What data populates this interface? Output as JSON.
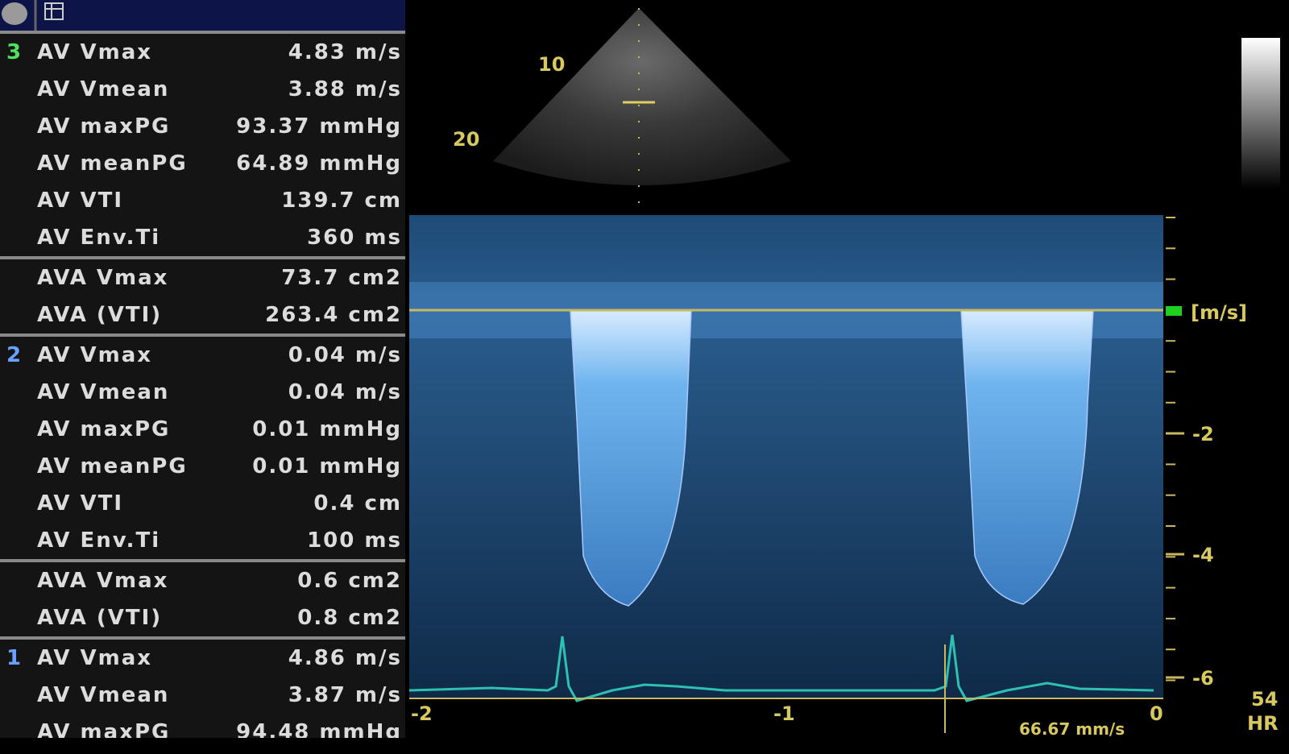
{
  "measurements": [
    {
      "index": "3",
      "rows": [
        {
          "label": "AV Vmax",
          "value": "4.83 m/s"
        },
        {
          "label": "AV Vmean",
          "value": "3.88 m/s"
        },
        {
          "label": "AV maxPG",
          "value": "93.37 mmHg"
        },
        {
          "label": "AV meanPG",
          "value": "64.89 mmHg"
        },
        {
          "label": "AV VTI",
          "value": "139.7 cm"
        },
        {
          "label": "AV Env.Ti",
          "value": "360 ms"
        }
      ]
    },
    {
      "rows": [
        {
          "label": "AVA Vmax",
          "value": "73.7 cm2"
        },
        {
          "label": "AVA (VTI)",
          "value": "263.4 cm2"
        }
      ]
    },
    {
      "index": "2",
      "rows": [
        {
          "label": "AV Vmax",
          "value": "0.04 m/s"
        },
        {
          "label": "AV Vmean",
          "value": "0.04 m/s"
        },
        {
          "label": "AV maxPG",
          "value": "0.01 mmHg"
        },
        {
          "label": "AV meanPG",
          "value": "0.01 mmHg"
        },
        {
          "label": "AV VTI",
          "value": "0.4 cm"
        },
        {
          "label": "AV Env.Ti",
          "value": "100 ms"
        }
      ]
    },
    {
      "rows": [
        {
          "label": "AVA Vmax",
          "value": "0.6 cm2"
        },
        {
          "label": "AVA (VTI)",
          "value": "0.8 cm2"
        }
      ]
    },
    {
      "index": "1",
      "rows": [
        {
          "label": "AV Vmax",
          "value": "4.86 m/s"
        },
        {
          "label": "AV Vmean",
          "value": "3.87 m/s"
        },
        {
          "label": "AV maxPG",
          "value": "94.48 mmHg"
        }
      ]
    }
  ],
  "depth_labels": [
    "10",
    "20"
  ],
  "velocity_axis": {
    "unit": "[m/s]",
    "labels": [
      "-2",
      "-4",
      "-6"
    ]
  },
  "time_axis": {
    "labels": [
      "-2",
      "-1",
      "0"
    ],
    "sweep": "66.67 mm/s"
  },
  "heart_rate": {
    "value": "54",
    "label": "HR"
  }
}
